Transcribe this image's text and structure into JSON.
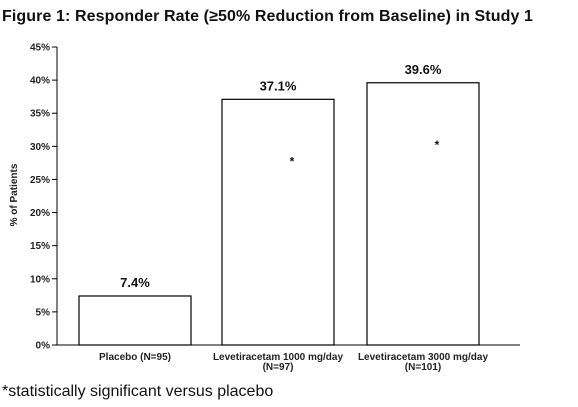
{
  "title": "Figure 1: Responder Rate (≥50% Reduction from Baseline) in Study 1",
  "footnote": "*statistically significant versus placebo",
  "chart_data": {
    "type": "bar",
    "title": "Figure 1: Responder Rate (≥50% Reduction from Baseline) in Study 1",
    "xlabel": "",
    "ylabel": "% of Patients",
    "ylim": [
      0,
      45
    ],
    "yticks": [
      0,
      5,
      10,
      15,
      20,
      25,
      30,
      35,
      40,
      45
    ],
    "ytick_labels": [
      "0%",
      "5%",
      "10%",
      "15%",
      "20%",
      "25%",
      "30%",
      "35%",
      "40%",
      "45%"
    ],
    "grid": false,
    "categories": [
      [
        "Placebo (N=95)"
      ],
      [
        "Levetiracetam 1000 mg/day",
        "(N=97)"
      ],
      [
        "Levetiracetam 3000 mg/day",
        "(N=101)"
      ]
    ],
    "values": [
      7.4,
      37.1,
      39.6
    ],
    "data_labels": [
      "7.4%",
      "37.1%",
      "39.6%"
    ],
    "significant": [
      false,
      true,
      true
    ],
    "significance_marker": "*",
    "bar_fill": "#ffffff",
    "bar_stroke": "#000000"
  }
}
